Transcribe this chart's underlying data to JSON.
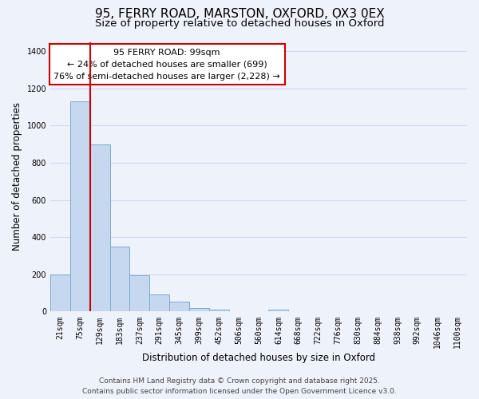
{
  "title": "95, FERRY ROAD, MARSTON, OXFORD, OX3 0EX",
  "subtitle": "Size of property relative to detached houses in Oxford",
  "xlabel": "Distribution of detached houses by size in Oxford",
  "ylabel": "Number of detached properties",
  "bar_color": "#c5d8f0",
  "bar_edge_color": "#7aaad0",
  "categories": [
    "21sqm",
    "75sqm",
    "129sqm",
    "183sqm",
    "237sqm",
    "291sqm",
    "345sqm",
    "399sqm",
    "452sqm",
    "506sqm",
    "560sqm",
    "614sqm",
    "668sqm",
    "722sqm",
    "776sqm",
    "830sqm",
    "884sqm",
    "938sqm",
    "992sqm",
    "1046sqm",
    "1100sqm"
  ],
  "values": [
    200,
    1130,
    900,
    350,
    195,
    90,
    55,
    20,
    10,
    0,
    0,
    10,
    0,
    0,
    0,
    0,
    0,
    0,
    0,
    0,
    0
  ],
  "property_line_color": "#cc0000",
  "annotation_line1": "95 FERRY ROAD: 99sqm",
  "annotation_line2": "← 24% of detached houses are smaller (699)",
  "annotation_line3": "76% of semi-detached houses are larger (2,228) →",
  "annotation_box_color": "#ffffff",
  "annotation_box_edge": "#cc0000",
  "ylim": [
    0,
    1450
  ],
  "yticks": [
    0,
    200,
    400,
    600,
    800,
    1000,
    1200,
    1400
  ],
  "footer_line1": "Contains HM Land Registry data © Crown copyright and database right 2025.",
  "footer_line2": "Contains public sector information licensed under the Open Government Licence v3.0.",
  "background_color": "#eef2fb",
  "grid_color": "#d0d8f0",
  "title_fontsize": 11,
  "subtitle_fontsize": 9.5,
  "axis_label_fontsize": 8.5,
  "tick_fontsize": 7,
  "annotation_fontsize": 8,
  "footer_fontsize": 6.5
}
